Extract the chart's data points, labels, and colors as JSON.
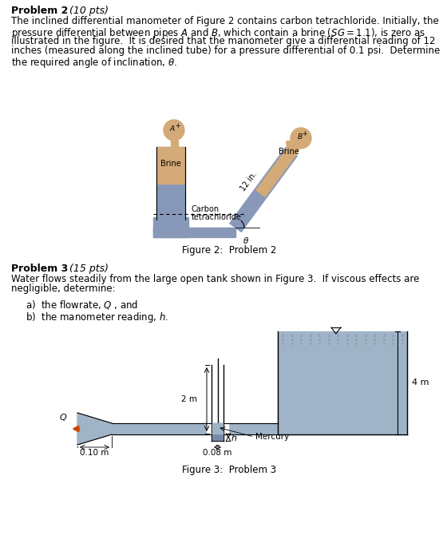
{
  "bg_color": "#ffffff",
  "page_width": 5.55,
  "page_height": 7.0,
  "prob2_title": "Problem 2",
  "prob2_pts": " (10 pts)",
  "prob2_lines": [
    "The inclined differential manometer of Figure 2 contains carbon tetrachloride. Initially, the",
    "pressure differential between pipes $A$ and $B$, which contain a brine ($SG = 1.1$), is zero as",
    "illustrated in the figure.  It is desired that the manometer give a differential reading of 12",
    "inches (measured along the inclined tube) for a pressure differential of 0.1 psi.  Determine",
    "the required angle of inclination, $\\theta$."
  ],
  "prob2_caption": "Figure 2:  Problem 2",
  "prob3_title": "Problem 3",
  "prob3_pts": " (15 pts)",
  "prob3_lines": [
    "Water flows steadily from the large open tank shown in Figure 3.  If viscous effects are",
    "negligible, determine:"
  ],
  "prob3_a": "a)  the flowrate, $Q$ , and",
  "prob3_b": "b)  the manometer reading, $h$.",
  "prob3_caption": "Figure 3:  Problem 3",
  "pipe_tan": "#d4aa78",
  "pipe_blue": "#8898b8",
  "water_blue": "#a0b4c8",
  "mercury_blue": "#7888a8",
  "arrow_orange": "#cc4400"
}
